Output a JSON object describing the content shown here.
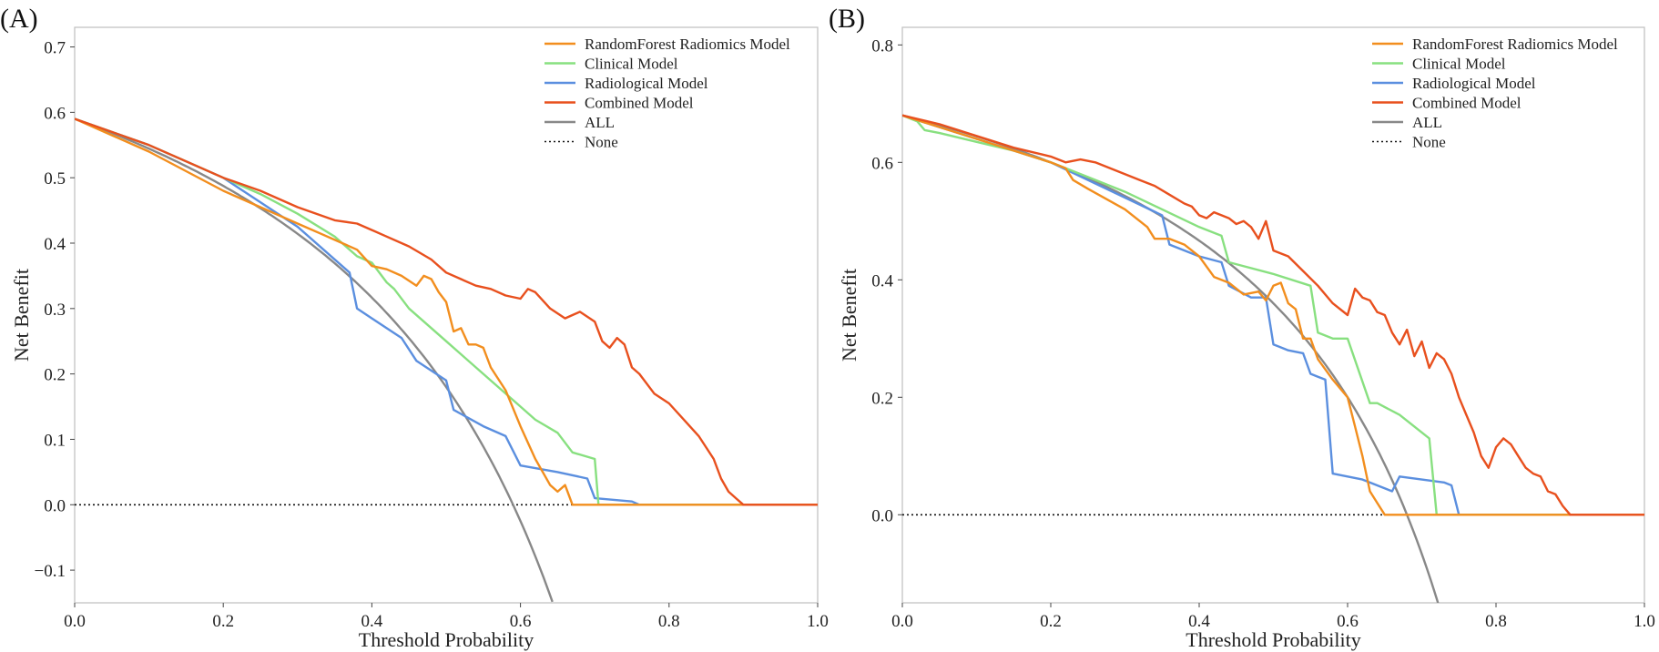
{
  "chart_data": [
    {
      "type": "line",
      "panel_label": "(A)",
      "title": "",
      "xlabel": "Threshold Probability",
      "ylabel": "Net Benefit",
      "xlim": [
        0,
        1.0
      ],
      "ylim": [
        -0.15,
        0.73
      ],
      "xticks": [
        0.0,
        0.2,
        0.4,
        0.6,
        0.8,
        1.0
      ],
      "xtick_labels": [
        "0.0",
        "0.2",
        "0.4",
        "0.6",
        "0.8",
        "1.0"
      ],
      "yticks": [
        -0.1,
        0.0,
        0.1,
        0.2,
        0.3,
        0.4,
        0.5,
        0.6,
        0.7
      ],
      "ytick_labels": [
        "−0.1",
        "0.0",
        "0.1",
        "0.2",
        "0.3",
        "0.4",
        "0.5",
        "0.6",
        "0.7"
      ],
      "legend_position": "top-right",
      "series": [
        {
          "name": "RandomForest Radiomics Model",
          "color": "#f28e1e",
          "style": "solid",
          "x": [
            0,
            0.05,
            0.1,
            0.15,
            0.2,
            0.25,
            0.3,
            0.33,
            0.35,
            0.38,
            0.4,
            0.42,
            0.44,
            0.46,
            0.47,
            0.48,
            0.49,
            0.5,
            0.51,
            0.52,
            0.53,
            0.54,
            0.55,
            0.56,
            0.58,
            0.6,
            0.62,
            0.64,
            0.65,
            0.66,
            0.67,
            0.68,
            0.69,
            0.7,
            0.75,
            1.0
          ],
          "y": [
            0.59,
            0.565,
            0.54,
            0.51,
            0.48,
            0.455,
            0.43,
            0.415,
            0.405,
            0.39,
            0.365,
            0.36,
            0.35,
            0.335,
            0.35,
            0.345,
            0.325,
            0.31,
            0.265,
            0.27,
            0.245,
            0.245,
            0.24,
            0.21,
            0.175,
            0.12,
            0.07,
            0.03,
            0.02,
            0.03,
            0.0,
            0.0,
            0.0,
            0.0,
            0.0,
            0.0
          ]
        },
        {
          "name": "Clinical Model",
          "color": "#88e080",
          "style": "solid",
          "x": [
            0,
            0.05,
            0.1,
            0.15,
            0.2,
            0.25,
            0.3,
            0.35,
            0.38,
            0.4,
            0.42,
            0.43,
            0.45,
            0.5,
            0.55,
            0.6,
            0.62,
            0.65,
            0.67,
            0.7,
            0.705,
            0.71,
            0.75,
            1.0
          ],
          "y": [
            0.59,
            0.57,
            0.55,
            0.525,
            0.5,
            0.475,
            0.445,
            0.41,
            0.38,
            0.37,
            0.34,
            0.33,
            0.3,
            0.25,
            0.2,
            0.15,
            0.13,
            0.11,
            0.08,
            0.07,
            0.0,
            0.0,
            0.0,
            0.0
          ]
        },
        {
          "name": "Radiological Model",
          "color": "#5b8fdf",
          "style": "solid",
          "x": [
            0,
            0.1,
            0.2,
            0.3,
            0.37,
            0.38,
            0.4,
            0.42,
            0.44,
            0.46,
            0.48,
            0.5,
            0.51,
            0.55,
            0.58,
            0.6,
            0.65,
            0.69,
            0.7,
            0.75,
            0.76,
            1.0
          ],
          "y": [
            0.59,
            0.55,
            0.5,
            0.425,
            0.355,
            0.3,
            0.285,
            0.27,
            0.255,
            0.22,
            0.205,
            0.19,
            0.145,
            0.12,
            0.105,
            0.06,
            0.05,
            0.04,
            0.01,
            0.005,
            0.0,
            0.0
          ]
        },
        {
          "name": "Combined Model",
          "color": "#e8501e",
          "style": "solid",
          "x": [
            0,
            0.05,
            0.1,
            0.15,
            0.2,
            0.25,
            0.3,
            0.35,
            0.38,
            0.4,
            0.42,
            0.45,
            0.48,
            0.5,
            0.52,
            0.54,
            0.56,
            0.58,
            0.6,
            0.61,
            0.62,
            0.64,
            0.66,
            0.67,
            0.68,
            0.7,
            0.71,
            0.72,
            0.73,
            0.74,
            0.75,
            0.76,
            0.78,
            0.8,
            0.82,
            0.84,
            0.86,
            0.87,
            0.88,
            0.89,
            0.9,
            1.0
          ],
          "y": [
            0.59,
            0.57,
            0.55,
            0.525,
            0.5,
            0.48,
            0.455,
            0.435,
            0.43,
            0.42,
            0.41,
            0.395,
            0.375,
            0.355,
            0.345,
            0.335,
            0.33,
            0.32,
            0.315,
            0.33,
            0.325,
            0.3,
            0.285,
            0.29,
            0.295,
            0.28,
            0.25,
            0.24,
            0.255,
            0.245,
            0.21,
            0.2,
            0.17,
            0.155,
            0.13,
            0.105,
            0.07,
            0.04,
            0.02,
            0.01,
            0.0,
            0.0
          ]
        },
        {
          "name": "ALL",
          "color": "#888888",
          "style": "solid",
          "prevalence": 0.59,
          "x_max": 0.643
        },
        {
          "name": "None",
          "color": "#111111",
          "style": "dotted",
          "x": [
            0,
            1.0
          ],
          "y": [
            0,
            0
          ]
        }
      ]
    },
    {
      "type": "line",
      "panel_label": "(B)",
      "title": "",
      "xlabel": "Threshold Probability",
      "ylabel": "Net Benefit",
      "xlim": [
        0,
        1.0
      ],
      "ylim": [
        -0.15,
        0.83
      ],
      "xticks": [
        0.0,
        0.2,
        0.4,
        0.6,
        0.8,
        1.0
      ],
      "xtick_labels": [
        "0.0",
        "0.2",
        "0.4",
        "0.6",
        "0.8",
        "1.0"
      ],
      "yticks": [
        0.0,
        0.2,
        0.4,
        0.6,
        0.8
      ],
      "ytick_labels": [
        "0.0",
        "0.2",
        "0.4",
        "0.6",
        "0.8"
      ],
      "legend_position": "top-right",
      "series": [
        {
          "name": "RandomForest Radiomics Model",
          "color": "#f28e1e",
          "style": "solid",
          "x": [
            0,
            0.1,
            0.2,
            0.22,
            0.23,
            0.25,
            0.3,
            0.33,
            0.34,
            0.36,
            0.38,
            0.4,
            0.42,
            0.44,
            0.46,
            0.48,
            0.49,
            0.5,
            0.51,
            0.52,
            0.53,
            0.54,
            0.55,
            0.56,
            0.58,
            0.6,
            0.61,
            0.62,
            0.63,
            0.64,
            0.65,
            0.7,
            1.0
          ],
          "y": [
            0.68,
            0.64,
            0.6,
            0.59,
            0.57,
            0.555,
            0.52,
            0.49,
            0.47,
            0.47,
            0.46,
            0.44,
            0.405,
            0.395,
            0.375,
            0.38,
            0.365,
            0.39,
            0.395,
            0.36,
            0.35,
            0.3,
            0.3,
            0.265,
            0.23,
            0.2,
            0.15,
            0.1,
            0.04,
            0.02,
            0.0,
            0.0,
            0.0
          ]
        },
        {
          "name": "Clinical Model",
          "color": "#88e080",
          "style": "solid",
          "x": [
            0,
            0.02,
            0.03,
            0.05,
            0.1,
            0.15,
            0.2,
            0.25,
            0.3,
            0.35,
            0.4,
            0.43,
            0.44,
            0.5,
            0.55,
            0.56,
            0.58,
            0.6,
            0.63,
            0.64,
            0.67,
            0.71,
            0.72,
            0.75,
            1.0
          ],
          "y": [
            0.68,
            0.67,
            0.655,
            0.65,
            0.635,
            0.62,
            0.6,
            0.575,
            0.55,
            0.52,
            0.49,
            0.475,
            0.43,
            0.41,
            0.39,
            0.31,
            0.3,
            0.3,
            0.19,
            0.19,
            0.17,
            0.13,
            0.0,
            0.0,
            0.0
          ]
        },
        {
          "name": "Radiological Model",
          "color": "#5b8fdf",
          "style": "solid",
          "x": [
            0,
            0.1,
            0.2,
            0.3,
            0.35,
            0.36,
            0.4,
            0.43,
            0.44,
            0.47,
            0.49,
            0.5,
            0.52,
            0.54,
            0.55,
            0.56,
            0.57,
            0.58,
            0.6,
            0.62,
            0.66,
            0.67,
            0.73,
            0.74,
            0.75,
            1.0
          ],
          "y": [
            0.68,
            0.64,
            0.6,
            0.54,
            0.51,
            0.46,
            0.44,
            0.43,
            0.39,
            0.37,
            0.37,
            0.29,
            0.28,
            0.275,
            0.24,
            0.235,
            0.23,
            0.07,
            0.065,
            0.06,
            0.04,
            0.065,
            0.055,
            0.05,
            0.0,
            0.0
          ]
        },
        {
          "name": "Combined Model",
          "color": "#e8501e",
          "style": "solid",
          "x": [
            0,
            0.05,
            0.1,
            0.15,
            0.2,
            0.22,
            0.24,
            0.26,
            0.28,
            0.3,
            0.32,
            0.34,
            0.36,
            0.38,
            0.39,
            0.4,
            0.41,
            0.42,
            0.43,
            0.44,
            0.45,
            0.46,
            0.47,
            0.48,
            0.49,
            0.5,
            0.52,
            0.54,
            0.56,
            0.58,
            0.6,
            0.61,
            0.62,
            0.63,
            0.64,
            0.65,
            0.66,
            0.67,
            0.68,
            0.69,
            0.7,
            0.71,
            0.72,
            0.73,
            0.74,
            0.75,
            0.76,
            0.77,
            0.78,
            0.79,
            0.8,
            0.81,
            0.82,
            0.83,
            0.84,
            0.85,
            0.86,
            0.87,
            0.88,
            0.89,
            0.9,
            1.0
          ],
          "y": [
            0.68,
            0.665,
            0.645,
            0.625,
            0.61,
            0.6,
            0.605,
            0.6,
            0.59,
            0.58,
            0.57,
            0.56,
            0.545,
            0.53,
            0.525,
            0.51,
            0.505,
            0.515,
            0.51,
            0.505,
            0.495,
            0.5,
            0.49,
            0.47,
            0.5,
            0.45,
            0.44,
            0.415,
            0.39,
            0.36,
            0.34,
            0.385,
            0.37,
            0.365,
            0.345,
            0.34,
            0.31,
            0.29,
            0.315,
            0.27,
            0.295,
            0.25,
            0.275,
            0.265,
            0.24,
            0.2,
            0.17,
            0.14,
            0.1,
            0.08,
            0.115,
            0.13,
            0.12,
            0.1,
            0.08,
            0.07,
            0.065,
            0.04,
            0.035,
            0.015,
            0.0,
            0.0
          ]
        },
        {
          "name": "ALL",
          "color": "#888888",
          "style": "solid",
          "prevalence": 0.68,
          "x_max": 0.725
        },
        {
          "name": "None",
          "color": "#111111",
          "style": "dotted",
          "x": [
            0,
            1.0
          ],
          "y": [
            0,
            0
          ]
        }
      ]
    }
  ]
}
